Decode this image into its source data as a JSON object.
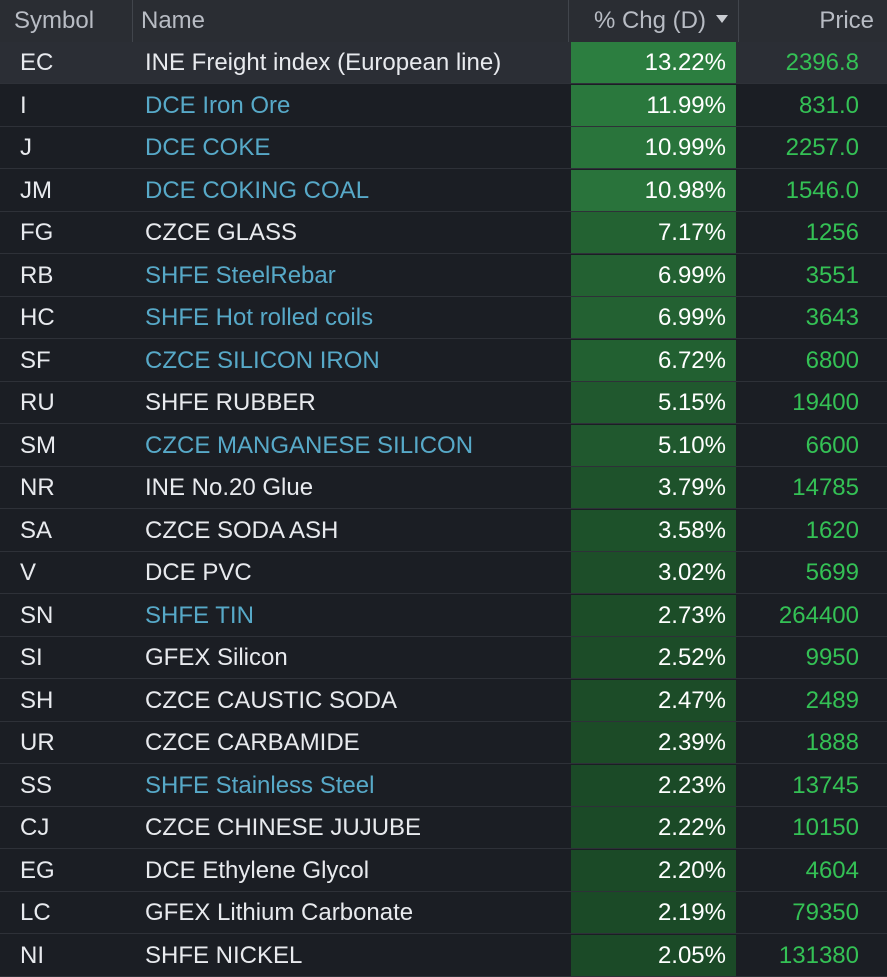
{
  "header": {
    "symbol": "Symbol",
    "name": "Name",
    "chg": "% Chg (D)",
    "price": "Price"
  },
  "colors": {
    "link_name": "#57a9c8",
    "price_up": "#34c155",
    "chg_fill": "#1e6a34"
  },
  "rows": [
    {
      "symbol": "EC",
      "name": "INE Freight index (European line)",
      "link": false,
      "chg": "13.22%",
      "chg_value": 13.22,
      "price": "2396.8"
    },
    {
      "symbol": "I",
      "name": "DCE Iron Ore",
      "link": true,
      "chg": "11.99%",
      "chg_value": 11.99,
      "price": "831.0"
    },
    {
      "symbol": "J",
      "name": "DCE COKE",
      "link": true,
      "chg": "10.99%",
      "chg_value": 10.99,
      "price": "2257.0"
    },
    {
      "symbol": "JM",
      "name": "DCE COKING COAL",
      "link": true,
      "chg": "10.98%",
      "chg_value": 10.98,
      "price": "1546.0"
    },
    {
      "symbol": "FG",
      "name": "CZCE GLASS",
      "link": false,
      "chg": "7.17%",
      "chg_value": 7.17,
      "price": "1256"
    },
    {
      "symbol": "RB",
      "name": "SHFE SteelRebar",
      "link": true,
      "chg": "6.99%",
      "chg_value": 6.99,
      "price": "3551"
    },
    {
      "symbol": "HC",
      "name": "SHFE Hot rolled coils",
      "link": true,
      "chg": "6.99%",
      "chg_value": 6.99,
      "price": "3643"
    },
    {
      "symbol": "SF",
      "name": "CZCE SILICON IRON",
      "link": true,
      "chg": "6.72%",
      "chg_value": 6.72,
      "price": "6800"
    },
    {
      "symbol": "RU",
      "name": "SHFE RUBBER",
      "link": false,
      "chg": "5.15%",
      "chg_value": 5.15,
      "price": "19400"
    },
    {
      "symbol": "SM",
      "name": "CZCE MANGANESE SILICON",
      "link": true,
      "chg": "5.10%",
      "chg_value": 5.1,
      "price": "6600"
    },
    {
      "symbol": "NR",
      "name": "INE No.20 Glue",
      "link": false,
      "chg": "3.79%",
      "chg_value": 3.79,
      "price": "14785"
    },
    {
      "symbol": "SA",
      "name": "CZCE SODA ASH",
      "link": false,
      "chg": "3.58%",
      "chg_value": 3.58,
      "price": "1620"
    },
    {
      "symbol": "V",
      "name": "DCE PVC",
      "link": false,
      "chg": "3.02%",
      "chg_value": 3.02,
      "price": "5699"
    },
    {
      "symbol": "SN",
      "name": "SHFE TIN",
      "link": true,
      "chg": "2.73%",
      "chg_value": 2.73,
      "price": "264400"
    },
    {
      "symbol": "SI",
      "name": "GFEX Silicon",
      "link": false,
      "chg": "2.52%",
      "chg_value": 2.52,
      "price": "9950"
    },
    {
      "symbol": "SH",
      "name": "CZCE CAUSTIC SODA",
      "link": false,
      "chg": "2.47%",
      "chg_value": 2.47,
      "price": "2489"
    },
    {
      "symbol": "UR",
      "name": "CZCE CARBAMIDE",
      "link": false,
      "chg": "2.39%",
      "chg_value": 2.39,
      "price": "1888"
    },
    {
      "symbol": "SS",
      "name": "SHFE Stainless Steel",
      "link": true,
      "chg": "2.23%",
      "chg_value": 2.23,
      "price": "13745"
    },
    {
      "symbol": "CJ",
      "name": "CZCE CHINESE JUJUBE",
      "link": false,
      "chg": "2.22%",
      "chg_value": 2.22,
      "price": "10150"
    },
    {
      "symbol": "EG",
      "name": "DCE Ethylene Glycol",
      "link": false,
      "chg": "2.20%",
      "chg_value": 2.2,
      "price": "4604"
    },
    {
      "symbol": "LC",
      "name": "GFEX Lithium Carbonate",
      "link": false,
      "chg": "2.19%",
      "chg_value": 2.19,
      "price": "79350"
    },
    {
      "symbol": "NI",
      "name": "SHFE NICKEL",
      "link": false,
      "chg": "2.05%",
      "chg_value": 2.05,
      "price": "131380"
    }
  ]
}
